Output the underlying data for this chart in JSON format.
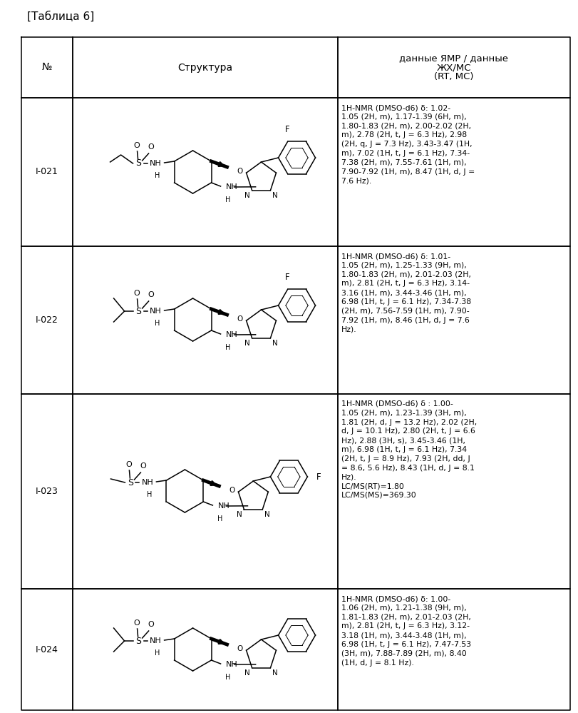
{
  "title": "[Таблица 6]",
  "header_col1": "№",
  "header_col2": "Структура",
  "header_col3_lines": [
    "данные ЯМР / данные",
    "ЖХ/МС",
    "(RT, МС)"
  ],
  "rows": [
    {
      "id": "I-021",
      "alkyl": "ethyl",
      "aryl": "2F",
      "nmr_lines": [
        "1H-NMR (DMSO-d6) δ: 1.02-",
        "1.05 (2H, m), 1.17-1.39 (6H, m),",
        "1.80-1.83 (2H, m), 2.00-2.02 (2H,",
        "m), 2.78 (2H, t, J = 6.3 Hz), 2.98",
        "(2H, q, J = 7.3 Hz), 3.43-3.47 (1H,",
        "m), 7.02 (1H, t, J = 6.1 Hz), 7.34-",
        "7.38 (2H, m), 7.55-7.61 (1H, m),",
        "7.90-7.92 (1H, m), 8.47 (1H, d, J =",
        "7.6 Hz)."
      ]
    },
    {
      "id": "I-022",
      "alkyl": "isopropyl",
      "aryl": "2F",
      "nmr_lines": [
        "1H-NMR (DMSO-d6) δ: 1.01-",
        "1.05 (2H, m), 1.25-1.33 (9H, m),",
        "1.80-1.83 (2H, m), 2.01-2.03 (2H,",
        "m), 2.81 (2H, t, J = 6.3 Hz), 3.14-",
        "3.16 (1H, m), 3.44-3.46 (1H, m),",
        "6.98 (1H, t, J = 6.1 Hz), 7.34-7.38",
        "(2H, m), 7.56-7.59 (1H, m), 7.90-",
        "7.92 (1H, m), 8.46 (1H, d, J = 7.6",
        "Hz)."
      ]
    },
    {
      "id": "I-023",
      "alkyl": "methyl",
      "aryl": "4F",
      "nmr_lines": [
        "1H-NMR (DMSO-d6) δ : 1.00-",
        "1.05 (2H, m), 1.23-1.39 (3H, m),",
        "1.81 (2H, d, J = 13.2 Hz), 2.02 (2H,",
        "d, J = 10.1 Hz), 2.80 (2H, t, J = 6.6",
        "Hz), 2.88 (3H, s), 3.45-3.46 (1H,",
        "m), 6.98 (1H, t, J = 6.1 Hz), 7.34",
        "(2H, t, J = 8.9 Hz), 7.93 (2H, dd, J",
        "= 8.6, 5.6 Hz), 8.43 (1H, d, J = 8.1",
        "Hz).",
        "LC/MS(RT)=1.80",
        "LC/MS(MS)=369.30"
      ]
    },
    {
      "id": "I-024",
      "alkyl": "isopropyl",
      "aryl": "phenyl",
      "nmr_lines": [
        "1H-NMR (DMSO-d6) δ: 1.00-",
        "1.06 (2H, m), 1.21-1.38 (9H, m),",
        "1.81-1.83 (2H, m), 2.01-2.03 (2H,",
        "m), 2.81 (2H, t, J = 6.3 Hz), 3.12-",
        "3.18 (1H, m), 3.44-3.48 (1H, m),",
        "6.98 (1H, t, J = 6.1 Hz), 7.47-7.53",
        "(3H, m), 7.88-7.89 (2H, m), 8.40",
        "(1H, d, J = 8.1 Hz)."
      ]
    }
  ]
}
